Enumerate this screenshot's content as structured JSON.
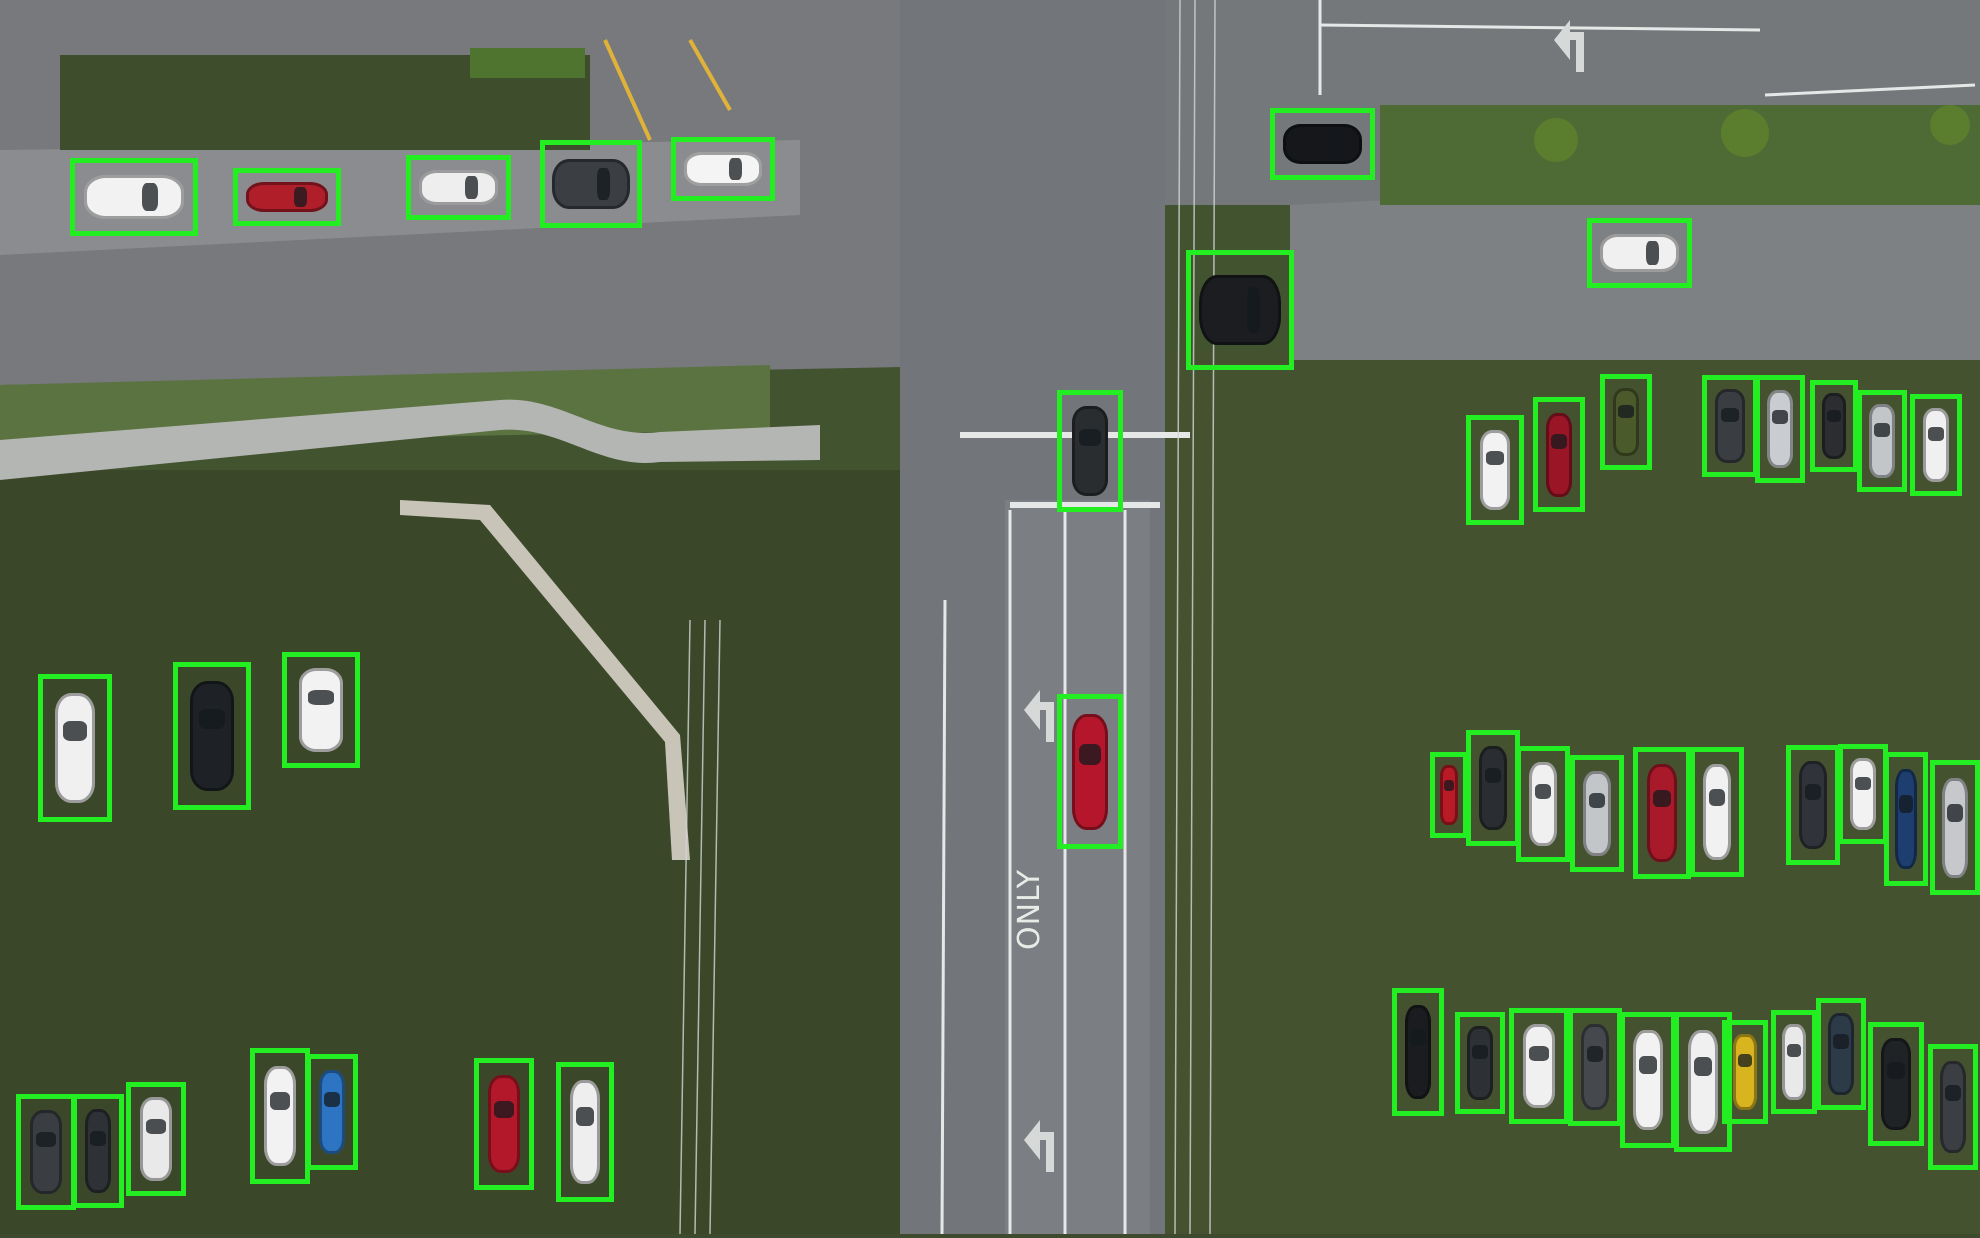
{
  "scene": {
    "road_marking_text": "ONLY",
    "colors": {
      "detection_box": "#22ee22",
      "grass": "#4c6136",
      "grass_dark": "#39472a",
      "asphalt": "#6e7175",
      "asphalt_light": "#85888b",
      "sidewalk": "#b4b6b3"
    }
  },
  "vehicles": [
    {
      "color": "#f2f2f2"
    },
    {
      "color": "#b01e2a"
    },
    {
      "color": "#eeeeee"
    },
    {
      "color": "#3b3f44"
    },
    {
      "color": "#f4f4f4"
    },
    {
      "color": "#15171a"
    },
    {
      "color": "#f0f0f0"
    },
    {
      "color": "#1b1d20"
    },
    {
      "color": "#2a2d30"
    },
    {
      "color": "#b5162b"
    },
    {
      "color": "#f2f2f2"
    },
    {
      "color": "#9a1526"
    },
    {
      "color": "#4b5a2a"
    },
    {
      "color": "#3a3d41"
    },
    {
      "color": "#c9ccd0"
    },
    {
      "color": "#2b2d30"
    },
    {
      "color": "#c3c6c9"
    },
    {
      "color": "#f0f0f0"
    },
    {
      "color": "#f0f0f0"
    },
    {
      "color": "#1e2226"
    },
    {
      "color": "#f2f2f2"
    },
    {
      "color": "#b81a26"
    },
    {
      "color": "#2a2d31"
    },
    {
      "color": "#f0f0f0"
    },
    {
      "color": "#c3c6c9"
    },
    {
      "color": "#a8192a"
    },
    {
      "color": "#f1f1f1"
    },
    {
      "color": "#30343a"
    },
    {
      "color": "#f2f2f2"
    },
    {
      "color": "#1d3e6e"
    },
    {
      "color": "#c6c8cb"
    },
    {
      "color": "#3a3d41"
    },
    {
      "color": "#2e3135"
    },
    {
      "color": "#e9e9e9"
    },
    {
      "color": "#f2f2f2"
    },
    {
      "color": "#2d74c2"
    },
    {
      "color": "#b3172a"
    },
    {
      "color": "#eeeeee"
    },
    {
      "color": "#1a1c1f"
    },
    {
      "color": "#2d3034"
    },
    {
      "color": "#f0f0f0"
    },
    {
      "color": "#45484c"
    },
    {
      "color": "#f2f2f2"
    },
    {
      "color": "#f0f0f0"
    },
    {
      "color": "#d8b51f"
    },
    {
      "color": "#e9e9e9"
    },
    {
      "color": "#2d3a48"
    },
    {
      "color": "#202326"
    },
    {
      "color": "#3b3e42"
    }
  ]
}
